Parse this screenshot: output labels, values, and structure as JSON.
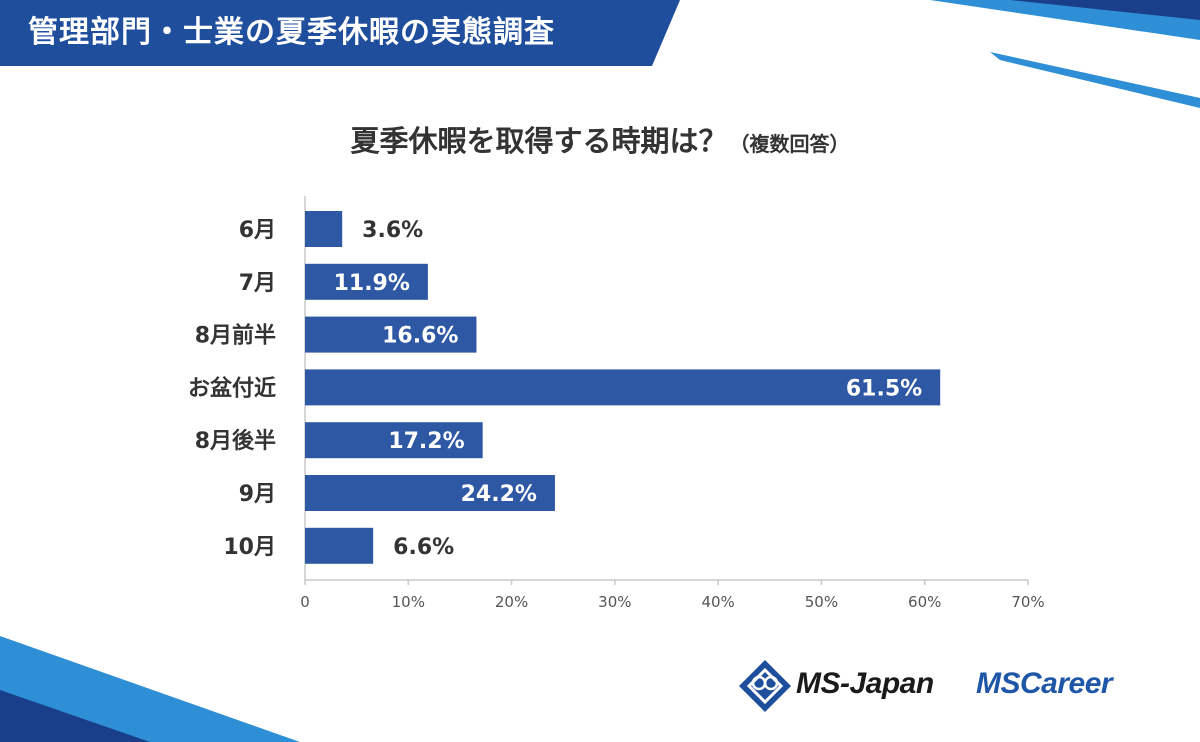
{
  "header": {
    "title": "管理部門・士業の夏季休暇の実態調査",
    "band_color": "#1f4e9c"
  },
  "colors": {
    "bar": "#2e58a3",
    "accent_light": "#2e8fd6",
    "accent_dark": "#1a3f8a",
    "text": "#333333"
  },
  "chart_data": {
    "type": "bar",
    "orientation": "horizontal",
    "title": "夏季休暇を取得する時期は？",
    "subtitle": "（複数回答）",
    "categories": [
      "6月",
      "7月",
      "8月前半",
      "お盆付近",
      "8月後半",
      "9月",
      "10月"
    ],
    "values": [
      3.6,
      11.9,
      16.6,
      61.5,
      17.2,
      24.2,
      6.6
    ],
    "value_labels": [
      "3.6%",
      "11.9%",
      "16.6%",
      "61.5%",
      "17.2%",
      "24.2%",
      "6.6%"
    ],
    "xlim": [
      0,
      70
    ],
    "xticks": [
      "0",
      "10%",
      "20%",
      "30%",
      "40%",
      "50%",
      "60%",
      "70%"
    ],
    "grid": false,
    "legend": "none"
  },
  "logos": {
    "ms_japan": "MS-Japan",
    "ms_career": "MSCareer"
  }
}
